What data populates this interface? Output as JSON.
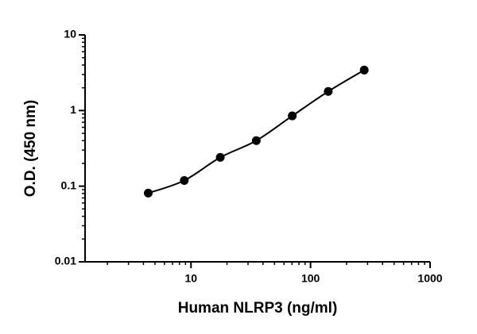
{
  "chart_data": {
    "type": "scatter",
    "x_label": "Human NLRP3 (ng/ml)",
    "y_label": "O.D. (450 nm)",
    "x": [
      4.39,
      8.79,
      17.58,
      35.16,
      70.31,
      140.63,
      281.25
    ],
    "values": [
      0.081,
      0.119,
      0.24,
      0.4,
      0.85,
      1.79,
      3.43
    ],
    "color": "#000000",
    "fit_line": true,
    "x_log": true,
    "y_log": true,
    "xlim": [
      1.3,
      1000
    ],
    "xticks": [
      10,
      100,
      1000
    ],
    "ylim": [
      0.01,
      10
    ],
    "yticks": [
      0.01,
      0.1,
      1,
      10
    ]
  }
}
